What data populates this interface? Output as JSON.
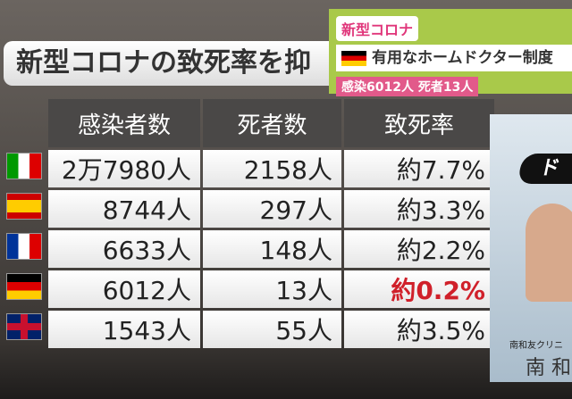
{
  "header": {
    "title": "新型コロナの致死率を抑"
  },
  "banner": {
    "tag": "新型コロナ",
    "headline": "有用なホームドクター制度",
    "stats": "感染6012人 死者13人"
  },
  "table": {
    "columns": [
      "感染者数",
      "死者数",
      "致死率"
    ],
    "rows": [
      [
        "2万7980人",
        "2158人",
        "約7.7%"
      ],
      [
        "8744人",
        "297人",
        "約3.3%"
      ],
      [
        "6633人",
        "148人",
        "約2.2%"
      ],
      [
        "6012人",
        "13人",
        "約0.2%"
      ],
      [
        "1543人",
        "55人",
        "約3.5%"
      ]
    ]
  },
  "side": {
    "caption": "ド",
    "clinic": "南和友クリニ",
    "name": "南 和"
  }
}
